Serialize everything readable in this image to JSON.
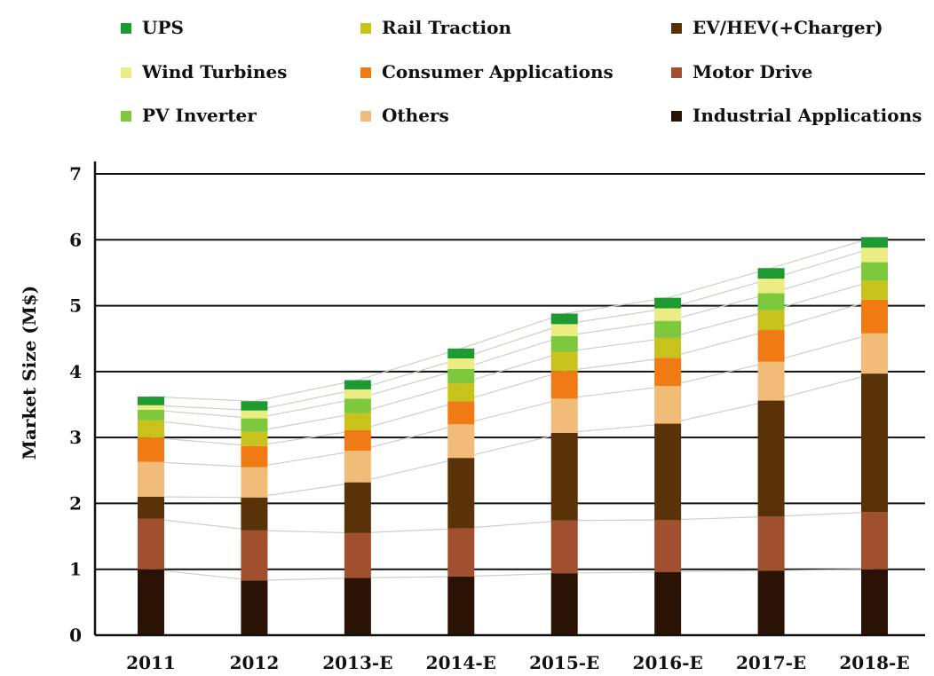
{
  "chart_data": {
    "type": "bar",
    "stacked": true,
    "title": "",
    "xlabel": "",
    "ylabel": "Market Size (M$)",
    "ylim": [
      0,
      7
    ],
    "yticks": [
      0,
      1,
      2,
      3,
      4,
      5,
      6,
      7
    ],
    "grid": true,
    "legend_position": "top",
    "categories": [
      "2011",
      "2012",
      "2013-E",
      "2014-E",
      "2015-E",
      "2016-E",
      "2017-E",
      "2018-E"
    ],
    "series": [
      {
        "name": "Industrial Applications",
        "color": "#2a1204",
        "values": [
          1.0,
          0.83,
          0.87,
          0.89,
          0.94,
          0.96,
          0.98,
          1.0
        ]
      },
      {
        "name": "Motor Drive",
        "color": "#a0502e",
        "values": [
          0.77,
          0.76,
          0.68,
          0.73,
          0.8,
          0.79,
          0.82,
          0.87
        ]
      },
      {
        "name": "EV/HEV(+Charger)",
        "color": "#5a3208",
        "values": [
          0.33,
          0.5,
          0.77,
          1.07,
          1.33,
          1.46,
          1.76,
          2.1
        ]
      },
      {
        "name": "Others",
        "color": "#f0bc78",
        "values": [
          0.53,
          0.46,
          0.48,
          0.51,
          0.52,
          0.57,
          0.59,
          0.61
        ]
      },
      {
        "name": "Consumer Applications",
        "color": "#f07a14",
        "values": [
          0.37,
          0.32,
          0.31,
          0.35,
          0.42,
          0.43,
          0.48,
          0.51
        ]
      },
      {
        "name": "Rail Traction",
        "color": "#c8c21c",
        "values": [
          0.26,
          0.22,
          0.26,
          0.27,
          0.29,
          0.3,
          0.3,
          0.29
        ]
      },
      {
        "name": "PV Inverter",
        "color": "#7ec83e",
        "values": [
          0.16,
          0.2,
          0.22,
          0.22,
          0.24,
          0.26,
          0.26,
          0.28
        ]
      },
      {
        "name": "Wind Turbines",
        "color": "#ecec84",
        "values": [
          0.07,
          0.12,
          0.14,
          0.16,
          0.18,
          0.19,
          0.22,
          0.22
        ]
      },
      {
        "name": "UPS",
        "color": "#1e9a32",
        "values": [
          0.13,
          0.14,
          0.14,
          0.15,
          0.16,
          0.16,
          0.16,
          0.16
        ]
      }
    ]
  }
}
